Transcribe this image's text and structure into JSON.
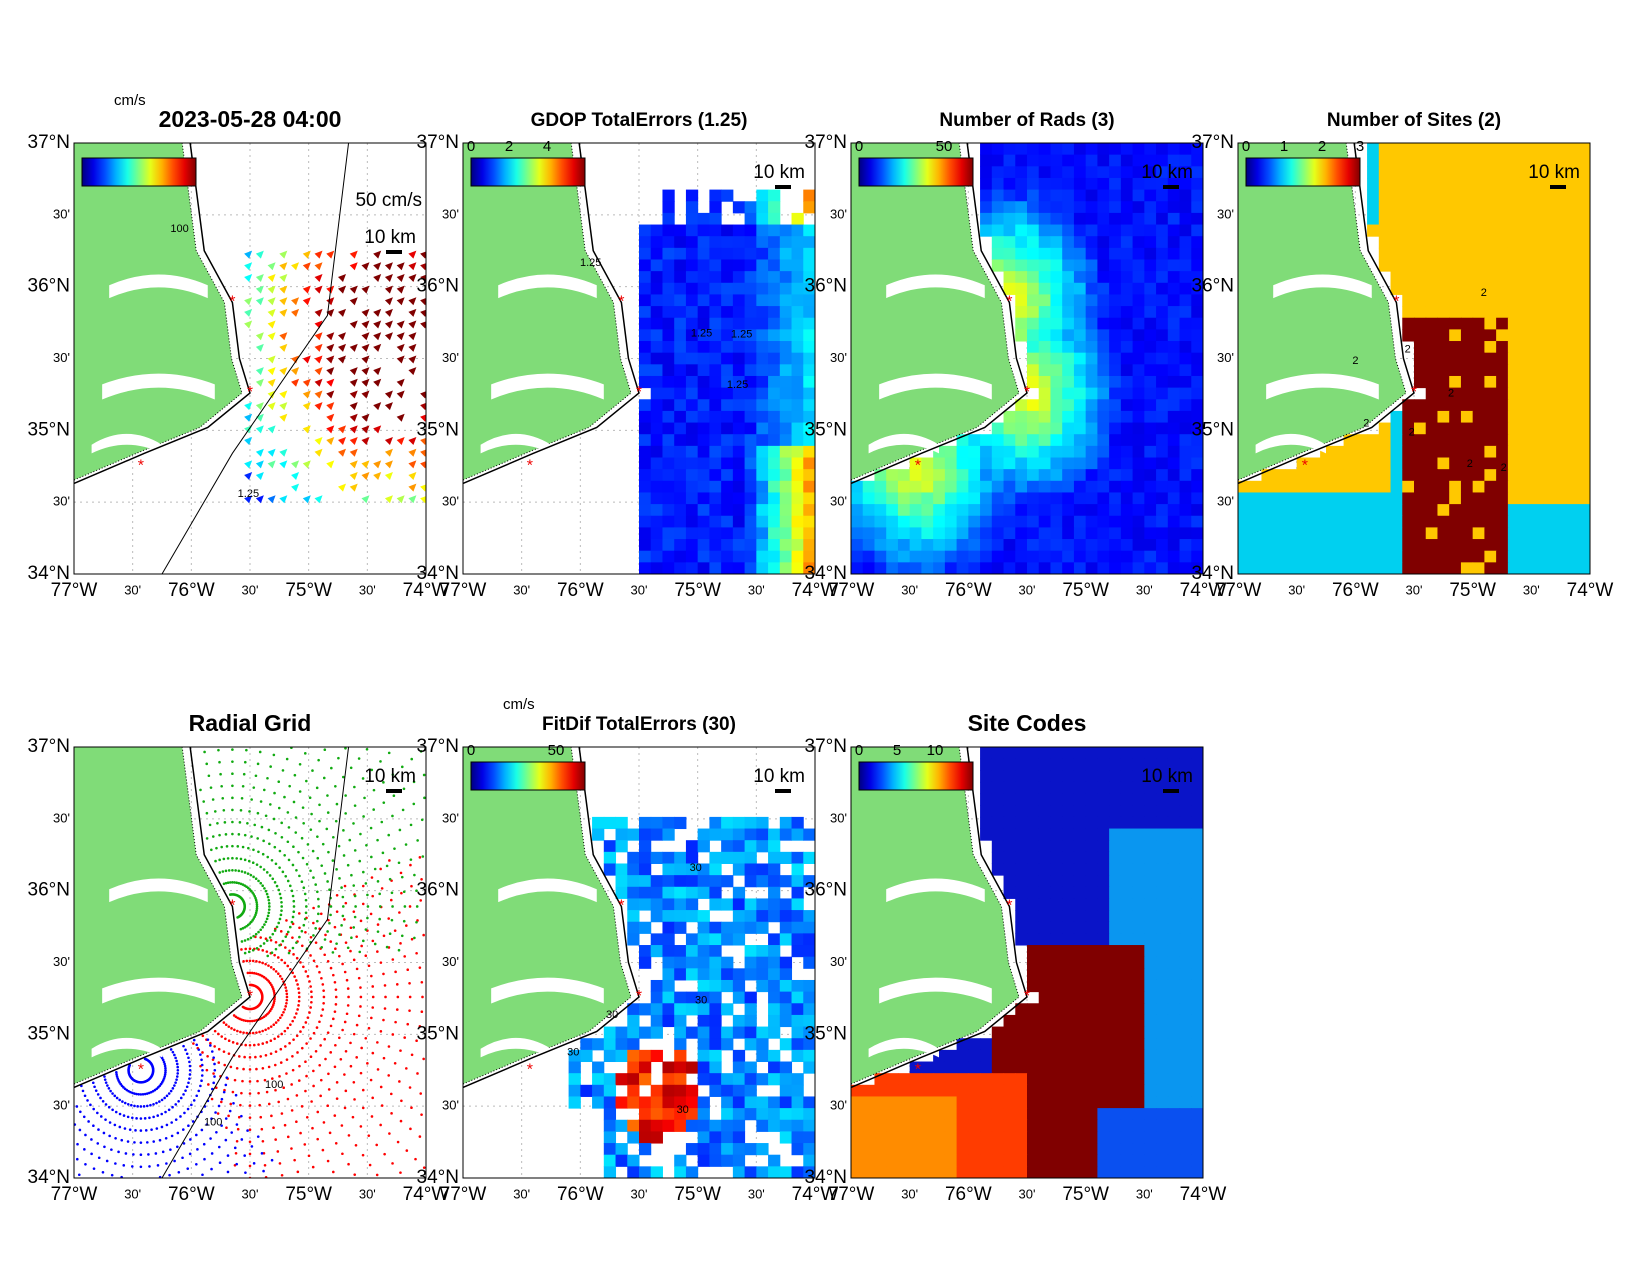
{
  "axes": {
    "x_labels": [
      "77°W",
      "30'",
      "76°W",
      "30'",
      "75°W",
      "30'",
      "74°W"
    ],
    "y_labels": [
      "37°N",
      "30'",
      "36°N",
      "30'",
      "35°N",
      "30'",
      "34°N"
    ]
  },
  "panels": [
    {
      "title": "2023-05-28 04:00",
      "colorbar_unit": "cm/s",
      "vector_label": "50 cm/s",
      "scale_label": "10 km",
      "contour_labels": [
        "100",
        "1.25"
      ]
    },
    {
      "title": "GDOP TotalErrors (1.25)",
      "colorbar_ticks": [
        "0",
        "2",
        "4"
      ],
      "scale_label": "10 km",
      "contour_labels": [
        "1.25",
        "1.25",
        "1.25",
        "1.25"
      ]
    },
    {
      "title": "Number of Rads (3)",
      "colorbar_ticks": [
        "0",
        "50"
      ],
      "scale_label": "10 km"
    },
    {
      "title": "Number of Sites (2)",
      "colorbar_ticks": [
        "0",
        "1",
        "2",
        "3"
      ],
      "scale_label": "10 km",
      "contour_labels": [
        "2",
        "2",
        "2",
        "2",
        "2",
        "2",
        "2",
        "2"
      ]
    },
    {
      "title": "Radial Grid",
      "scale_label": "10 km",
      "contour_labels": [
        "100",
        "100"
      ]
    },
    {
      "title": "FitDif TotalErrors (30)",
      "colorbar_unit": "cm/s",
      "colorbar_ticks": [
        "0",
        "50"
      ],
      "scale_label": "10 km",
      "contour_labels": [
        "30",
        "30",
        "30",
        "30",
        "30"
      ]
    },
    {
      "title": "Site Codes",
      "colorbar_ticks": [
        "0",
        "5",
        "10"
      ],
      "scale_label": "10 km"
    }
  ]
}
